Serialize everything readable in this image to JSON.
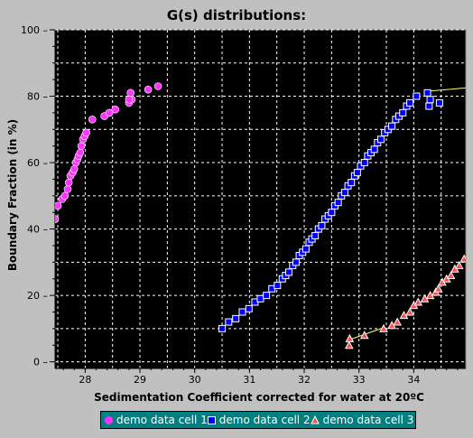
{
  "chart_data": {
    "type": "scatter",
    "title": "G(s) distributions:",
    "xlabel": "Sedimentation Coefficient corrected for water at 20ºC",
    "ylabel": "Boundary Fraction (in %)",
    "xlim": [
      27.45,
      34.95
    ],
    "ylim": [
      -2,
      100
    ],
    "xticks": [
      28,
      29,
      30,
      31,
      32,
      33,
      34
    ],
    "yticks": [
      0,
      20,
      40,
      60,
      80,
      100
    ],
    "ytick_labels": [
      "0",
      "20",
      "40",
      "60",
      "80",
      "100"
    ],
    "grid": true,
    "background": "#000000",
    "grid_color": "#ffffff",
    "legend_position": "bottom",
    "series": [
      {
        "name": "demo data cell 1",
        "marker": "circle",
        "color": "#ff33ff",
        "x": [
          27.45,
          27.5,
          27.58,
          27.63,
          27.68,
          27.7,
          27.73,
          27.77,
          27.8,
          27.83,
          27.86,
          27.88,
          27.91,
          27.93,
          27.96,
          27.99,
          28.02,
          28.13,
          28.35,
          28.44,
          28.55,
          28.8,
          28.85,
          28.8,
          28.83,
          29.15,
          29.33
        ],
        "y": [
          43,
          47,
          49,
          50,
          52,
          54,
          56,
          57,
          58,
          60,
          61,
          62,
          63,
          65,
          67,
          68,
          69,
          73,
          74,
          75,
          76,
          78,
          79,
          79,
          81,
          82,
          83
        ]
      },
      {
        "name": "demo data cell 2",
        "marker": "square",
        "color": "#0000ff",
        "x": [
          30.5,
          30.62,
          30.75,
          30.87,
          30.99,
          31.1,
          31.2,
          31.31,
          31.41,
          31.51,
          31.6,
          31.66,
          31.72,
          31.79,
          31.85,
          31.91,
          31.97,
          32.03,
          32.09,
          32.14,
          32.2,
          32.26,
          32.32,
          32.38,
          32.44,
          32.5,
          32.56,
          32.62,
          32.68,
          32.74,
          32.8,
          32.86,
          32.92,
          32.97,
          33.03,
          33.1,
          33.16,
          33.22,
          33.28,
          33.34,
          33.4,
          33.47,
          33.53,
          33.6,
          33.67,
          33.73,
          33.8,
          33.87,
          33.93,
          34.05,
          34.25,
          34.3,
          34.47,
          34.28
        ],
        "y": [
          10,
          12,
          13,
          15,
          16,
          18,
          19,
          20,
          22,
          23,
          25,
          26,
          27,
          29,
          30,
          32,
          33,
          34,
          36,
          37,
          38,
          40,
          41,
          43,
          44,
          45,
          47,
          48,
          50,
          51,
          53,
          54,
          56,
          57,
          59,
          60,
          62,
          63,
          64,
          66,
          67,
          69,
          70,
          71,
          73,
          74,
          75,
          77,
          78,
          80,
          81,
          79,
          78,
          77
        ]
      },
      {
        "name": "demo data cell 3",
        "marker": "triangle",
        "color": "#ff4d4d",
        "x": [
          32.82,
          32.83,
          33.1,
          33.45,
          33.6,
          33.7,
          33.82,
          33.93,
          34.0,
          34.08,
          34.2,
          34.3,
          34.4,
          34.45,
          34.52,
          34.6,
          34.68,
          34.75,
          34.83,
          34.92
        ],
        "y": [
          5,
          7,
          8,
          10,
          11,
          12,
          14,
          15,
          17,
          18,
          19,
          20,
          21,
          22,
          24,
          25,
          26,
          28,
          29,
          31
        ]
      }
    ],
    "fit_lines": [
      {
        "color": "#ffff66",
        "x": [
          34.25,
          34.95
        ],
        "y": [
          81.5,
          82.5
        ]
      },
      {
        "color": "#ffff66",
        "x": [
          32.8,
          33.4
        ],
        "y": [
          6.5,
          10
        ]
      }
    ]
  },
  "legend": {
    "items": [
      {
        "label": "demo data cell 1"
      },
      {
        "label": "demo data cell 2"
      },
      {
        "label": "demo data cell 3"
      }
    ]
  }
}
